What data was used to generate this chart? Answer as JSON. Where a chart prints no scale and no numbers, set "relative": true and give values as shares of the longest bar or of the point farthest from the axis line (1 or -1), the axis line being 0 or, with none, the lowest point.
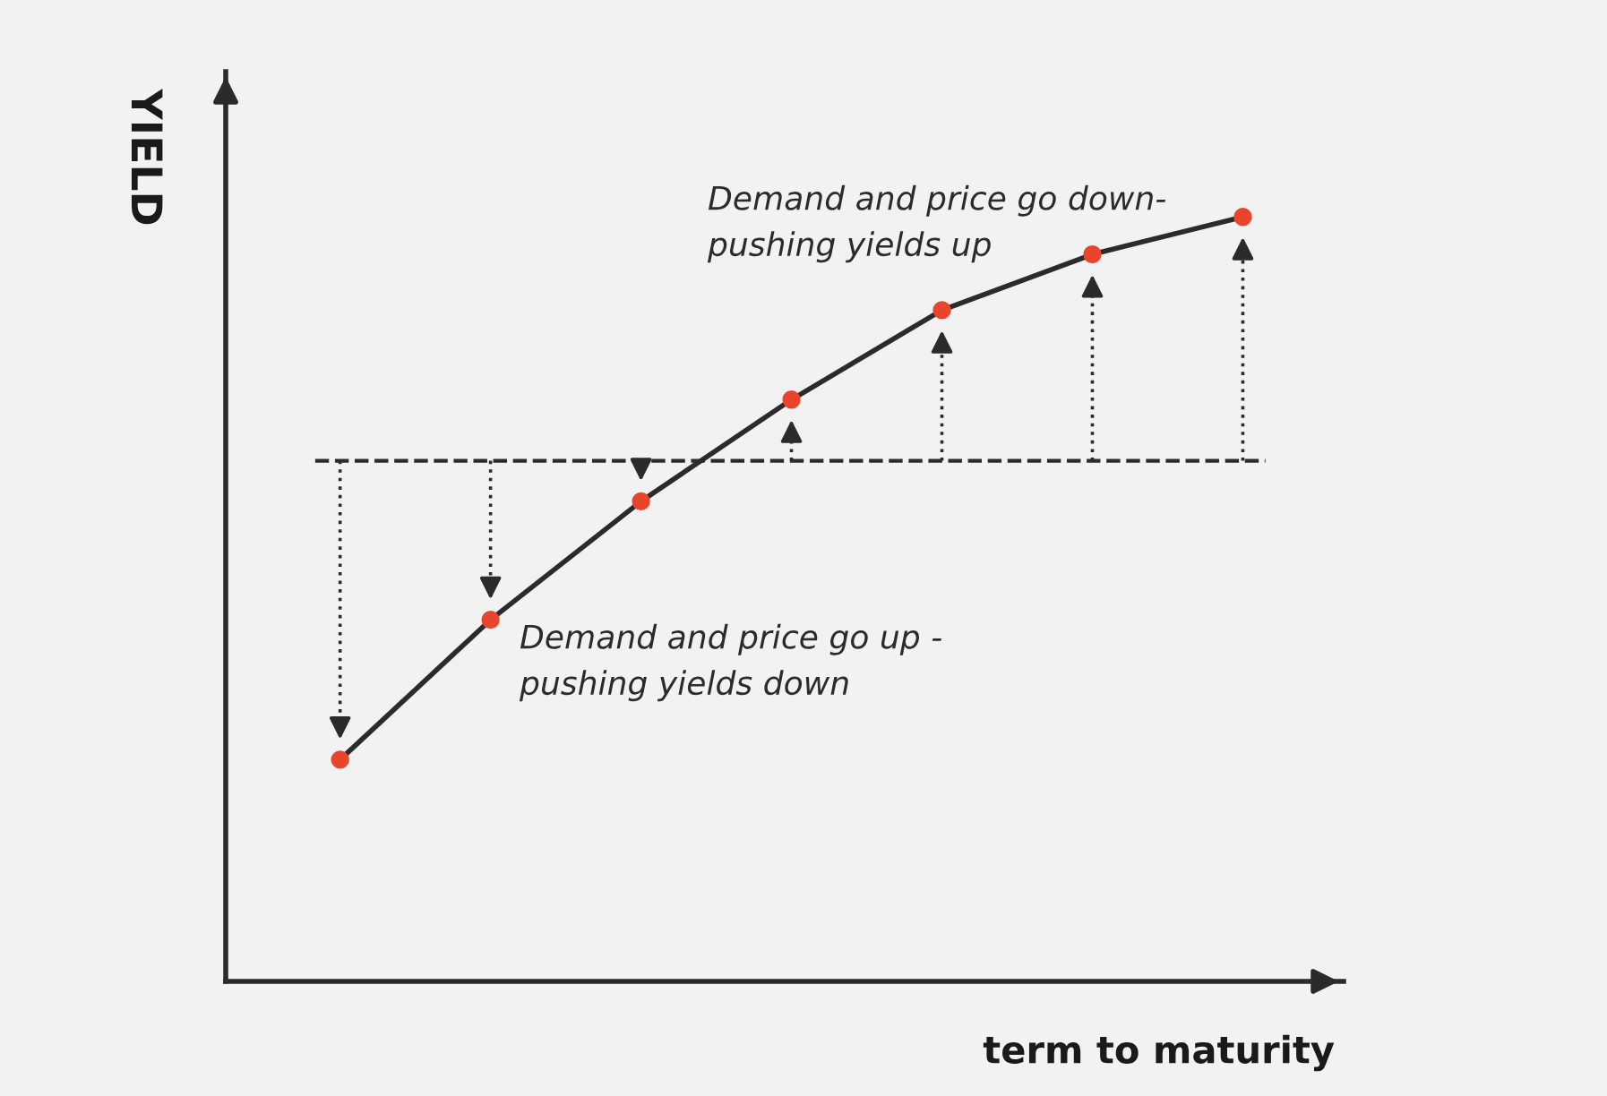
{
  "chart_data": {
    "type": "line",
    "relative": true,
    "xlabel": "term to maturity",
    "ylabel": "YIELD",
    "categories": [
      null,
      null,
      null,
      null,
      null,
      null,
      null
    ],
    "series": [
      {
        "color": "#2b2b2b",
        "colors": [
          "#e8452c",
          "#e8452c",
          "#e8452c",
          "#e8452c",
          "#e8452c",
          "#e8452c",
          "#e8452c"
        ],
        "values": [
          0.29,
          0.473,
          0.628,
          0.761,
          0.878,
          0.951,
          1.0
        ]
      }
    ],
    "marker": "circle",
    "line_style": "solid",
    "ref_lines": [
      {
        "axis": "y",
        "value": 0.681,
        "color": "#2b2b2b",
        "line_style": "dashed"
      }
    ],
    "annotations": [
      "Demand and price go down-\npushing yields up",
      "Demand and price go up -\npushing yields down"
    ]
  }
}
